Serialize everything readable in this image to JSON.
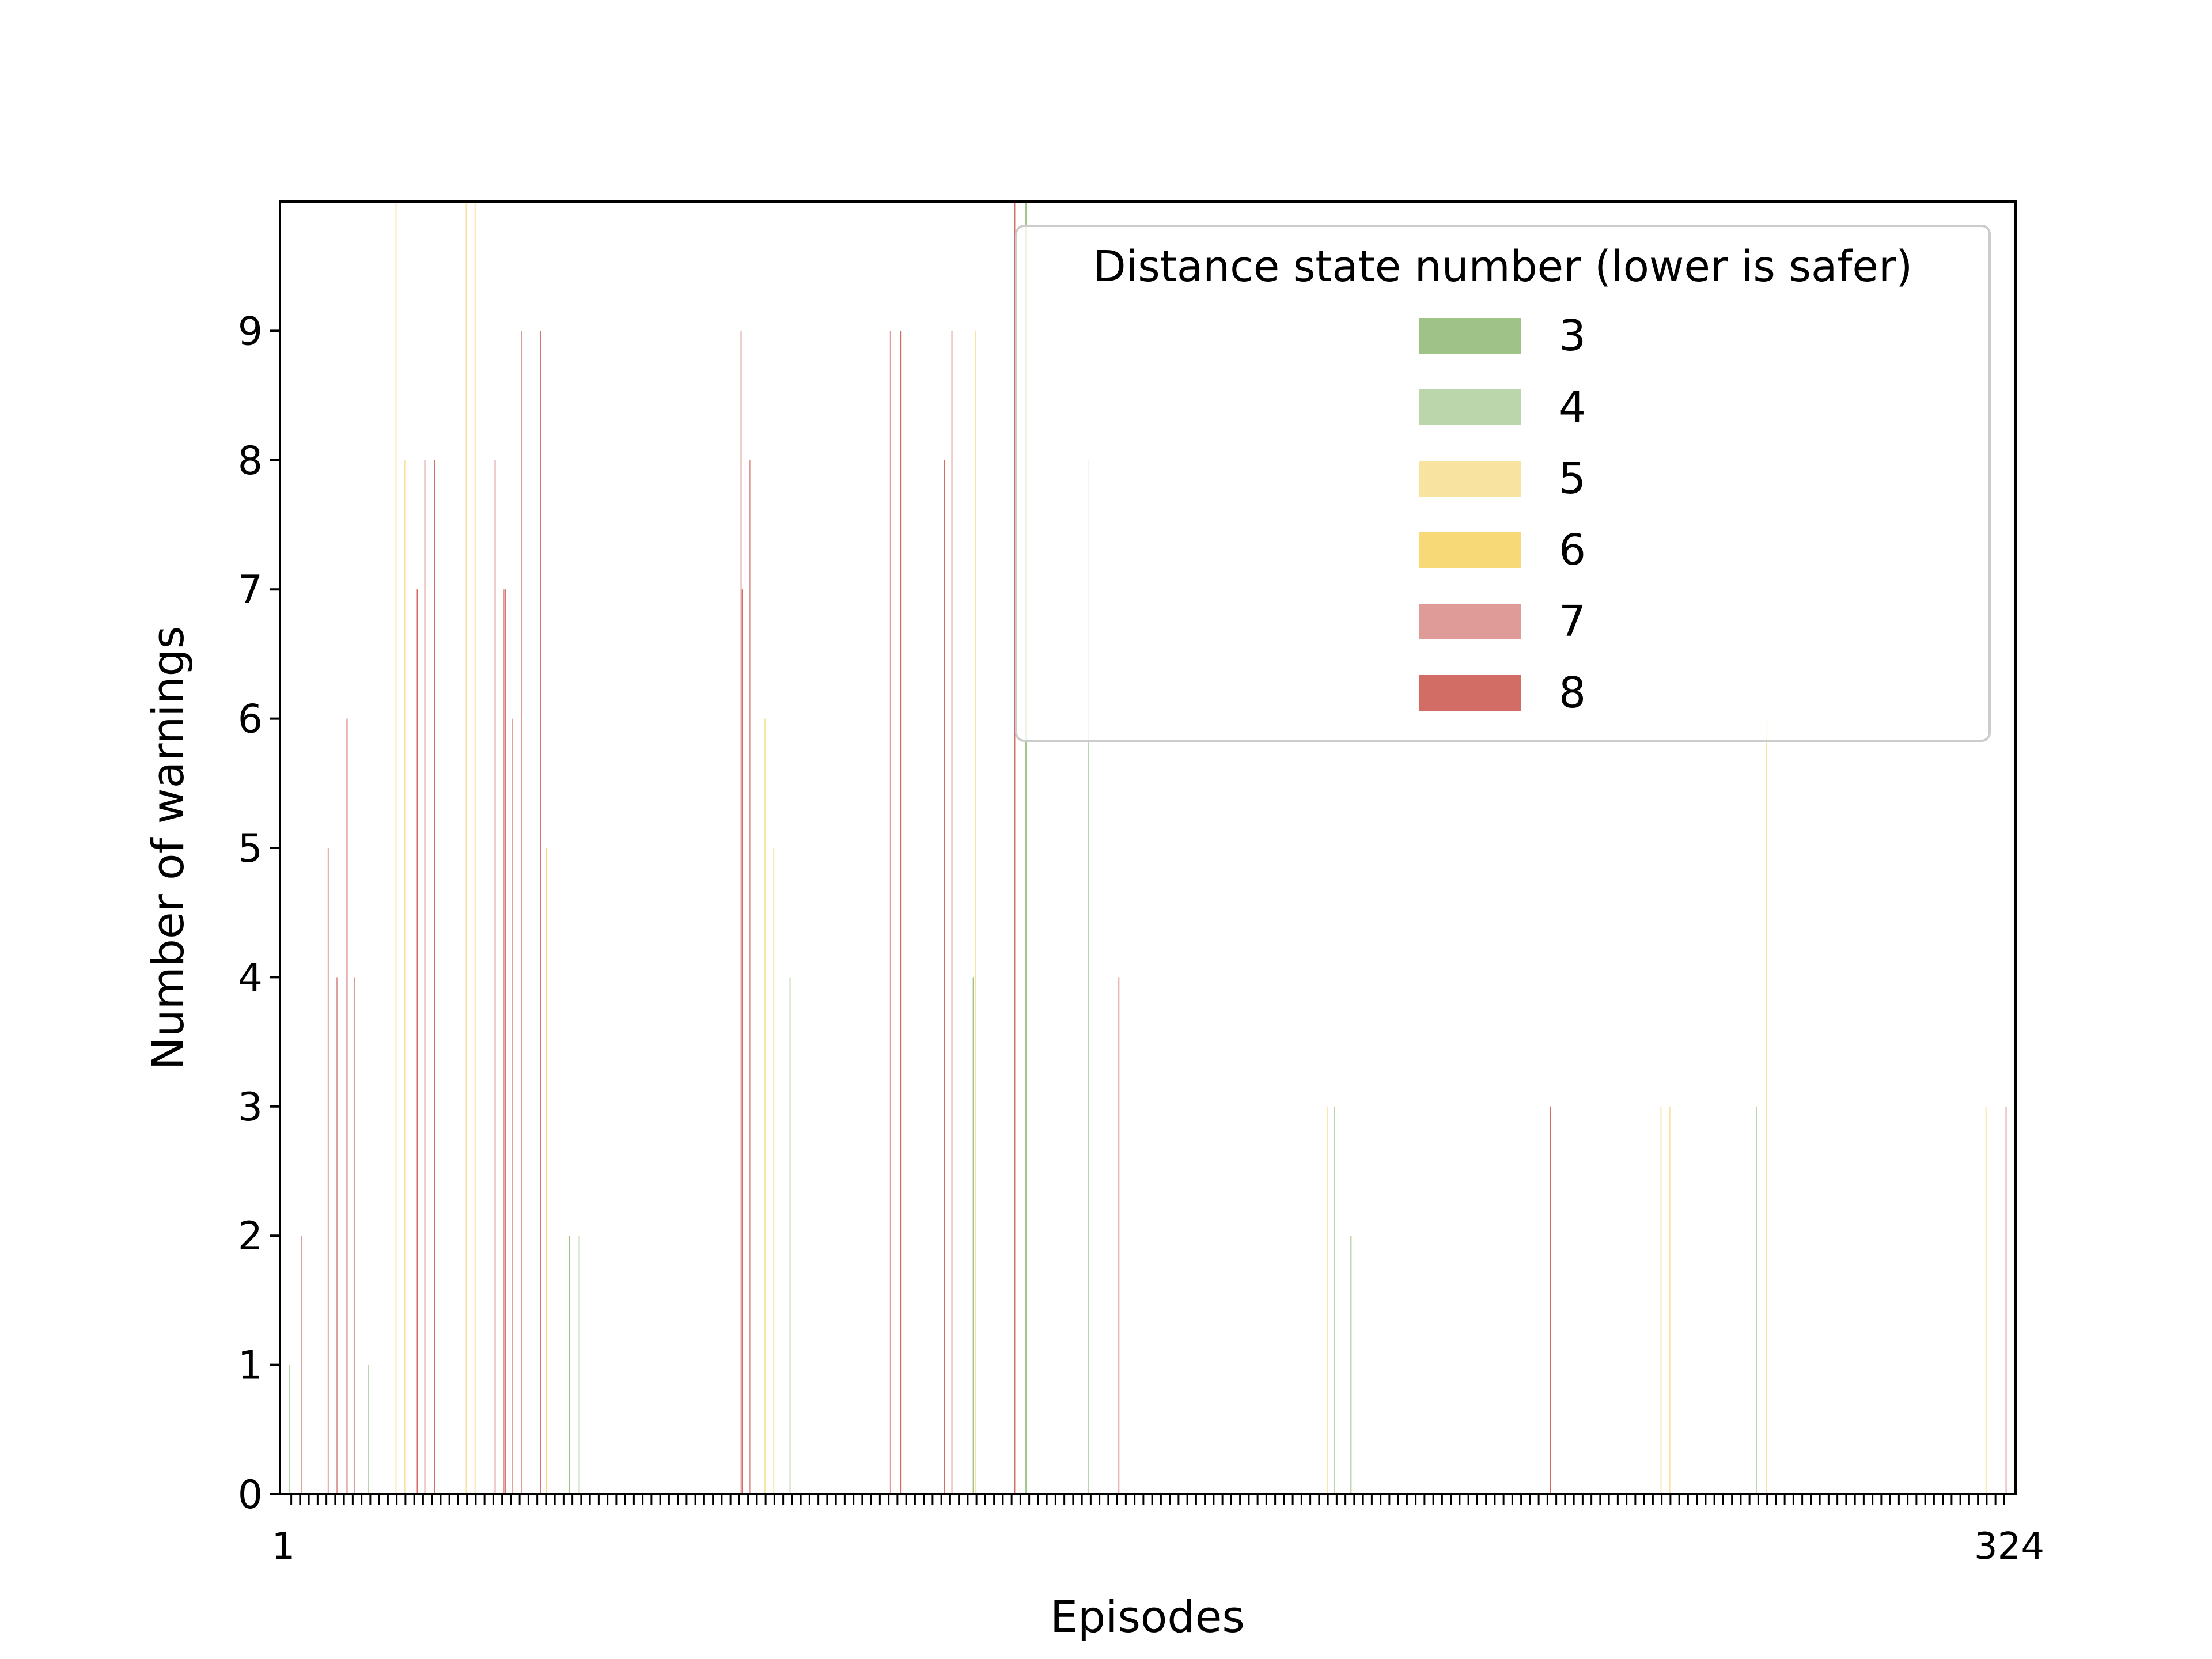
{
  "chart_data": {
    "type": "bar",
    "title": "",
    "xlabel": "Episodes",
    "ylabel": "Number of warnings",
    "ylim": [
      0,
      10
    ],
    "yticks": [
      0,
      1,
      2,
      3,
      4,
      5,
      6,
      7,
      8,
      9
    ],
    "x_first_label": "1",
    "x_last_label": "324",
    "n_episodes": 196,
    "legend": {
      "title": "Distance state number (lower is safer)",
      "placement": "upper right",
      "entries": [
        {
          "label": "3",
          "color": "#9fc288"
        },
        {
          "label": "4",
          "color": "#bad6aa"
        },
        {
          "label": "5",
          "color": "#f9e3a0"
        },
        {
          "label": "6",
          "color": "#f7d978"
        },
        {
          "label": "7",
          "color": "#df9b97"
        },
        {
          "label": "8",
          "color": "#d26d66"
        }
      ]
    },
    "series": [
      {
        "name": "3",
        "values": [
          0,
          0,
          0,
          0,
          0,
          0,
          0,
          0,
          0,
          0,
          0,
          0,
          0,
          0,
          0,
          0,
          0,
          0,
          0,
          0,
          0,
          0,
          0,
          0,
          0,
          0,
          0,
          0,
          0,
          0,
          0,
          0,
          2,
          0,
          0,
          0,
          0,
          0,
          0,
          0,
          0,
          0,
          0,
          0,
          0,
          0,
          0,
          0,
          0,
          0,
          0,
          0,
          0,
          0,
          0,
          0,
          0,
          0,
          0,
          0,
          0,
          0,
          0,
          0,
          0,
          0,
          0,
          0,
          0,
          0,
          0,
          0,
          0,
          0,
          0,
          0,
          0,
          0,
          4,
          0,
          0,
          0,
          0,
          0,
          10,
          0,
          0,
          0,
          0,
          0,
          0,
          0,
          0,
          0,
          0,
          0,
          0,
          0,
          0,
          0,
          0,
          0,
          0,
          0,
          0,
          0,
          0,
          0,
          0,
          0,
          0,
          0,
          0,
          0,
          0,
          0,
          0,
          0,
          0,
          0,
          0,
          2,
          0,
          0,
          0,
          0,
          0,
          0,
          0,
          0,
          0,
          0,
          0,
          0,
          0,
          0,
          0,
          0,
          0,
          0,
          0,
          0,
          0,
          0,
          0,
          0,
          0,
          0,
          0,
          0,
          0,
          0,
          0,
          0,
          0,
          0,
          0,
          0,
          0,
          0,
          0,
          0,
          0,
          0,
          0,
          0,
          0,
          0,
          0,
          0,
          0,
          0,
          0,
          0,
          0,
          0,
          0,
          0,
          0,
          0,
          0,
          0,
          0,
          0,
          0,
          0,
          0,
          0,
          0,
          0,
          0,
          0,
          0,
          0,
          0,
          0
        ]
      },
      {
        "name": "4",
        "values": [
          1,
          0,
          0,
          0,
          0,
          0,
          0,
          0,
          0,
          1,
          0,
          0,
          0,
          0,
          0,
          0,
          0,
          0,
          0,
          0,
          0,
          0,
          0,
          0,
          0,
          0,
          0,
          0,
          0,
          0,
          0,
          0,
          0,
          2,
          0,
          0,
          0,
          0,
          0,
          0,
          0,
          0,
          0,
          0,
          0,
          0,
          0,
          0,
          0,
          0,
          0,
          0,
          0,
          0,
          0,
          0,
          0,
          4,
          0,
          0,
          0,
          0,
          0,
          0,
          0,
          0,
          0,
          0,
          0,
          0,
          0,
          0,
          0,
          0,
          0,
          0,
          0,
          0,
          0,
          0,
          0,
          0,
          0,
          0,
          0,
          0,
          0,
          0,
          0,
          0,
          0,
          8,
          0,
          0,
          0,
          0,
          0,
          0,
          0,
          0,
          0,
          0,
          0,
          0,
          0,
          0,
          0,
          0,
          0,
          0,
          0,
          0,
          0,
          0,
          0,
          0,
          0,
          0,
          0,
          3,
          0,
          0,
          0,
          0,
          0,
          0,
          0,
          0,
          0,
          0,
          0,
          0,
          0,
          0,
          0,
          0,
          0,
          0,
          0,
          0,
          0,
          0,
          0,
          0,
          0,
          0,
          0,
          0,
          0,
          0,
          0,
          0,
          0,
          0,
          0,
          0,
          0,
          0,
          0,
          0,
          0,
          0,
          0,
          0,
          0,
          0,
          0,
          3,
          0,
          0,
          0,
          0,
          0,
          0,
          0,
          0,
          0,
          0,
          0,
          0,
          0,
          0,
          0,
          0,
          0,
          0,
          0,
          0,
          0,
          0,
          0,
          0,
          0,
          0,
          0,
          0
        ]
      },
      {
        "name": "5",
        "values": [
          0,
          0,
          0,
          0,
          0,
          0,
          0,
          0,
          0,
          0,
          0,
          0,
          10,
          8,
          0,
          0,
          0,
          0,
          0,
          0,
          10,
          10,
          0,
          0,
          0,
          0,
          0,
          0,
          0,
          0,
          0,
          0,
          0,
          0,
          0,
          0,
          0,
          0,
          0,
          0,
          0,
          0,
          0,
          0,
          0,
          0,
          0,
          0,
          0,
          0,
          0,
          0,
          0,
          0,
          6,
          5,
          0,
          0,
          0,
          0,
          0,
          0,
          0,
          0,
          0,
          0,
          0,
          0,
          0,
          0,
          0,
          0,
          0,
          0,
          0,
          0,
          0,
          0,
          9,
          0,
          0,
          0,
          0,
          0,
          0,
          0,
          0,
          0,
          0,
          0,
          0,
          0,
          0,
          0,
          0,
          0,
          0,
          0,
          0,
          0,
          0,
          0,
          0,
          0,
          0,
          0,
          0,
          0,
          0,
          0,
          0,
          0,
          0,
          0,
          0,
          0,
          0,
          0,
          3,
          0,
          0,
          0,
          0,
          0,
          0,
          0,
          0,
          0,
          0,
          0,
          0,
          0,
          0,
          0,
          0,
          0,
          0,
          0,
          0,
          0,
          0,
          0,
          0,
          0,
          0,
          0,
          0,
          0,
          0,
          0,
          0,
          0,
          0,
          0,
          0,
          0,
          3,
          3,
          0,
          0,
          0,
          0,
          0,
          0,
          0,
          0,
          0,
          0,
          6,
          0,
          0,
          0,
          0,
          0,
          0,
          0,
          0,
          0,
          0,
          0,
          0,
          0,
          0,
          0,
          0,
          0,
          0,
          0,
          0,
          0,
          0,
          0,
          0,
          3,
          0
        ]
      },
      {
        "name": "6",
        "values": [
          0,
          0,
          0,
          0,
          0,
          0,
          0,
          0,
          0,
          0,
          0,
          0,
          0,
          0,
          0,
          0,
          0,
          0,
          0,
          0,
          0,
          0,
          0,
          0,
          0,
          0,
          0,
          0,
          0,
          5,
          0,
          0,
          0,
          0,
          0,
          0,
          0,
          0,
          0,
          0,
          0,
          0,
          0,
          0,
          0,
          0,
          0,
          0,
          0,
          0,
          0,
          0,
          0,
          0,
          0,
          0,
          0,
          0,
          0,
          0,
          0,
          0,
          0,
          0,
          0,
          0,
          0,
          0,
          0,
          0,
          0,
          0,
          0,
          0,
          0,
          0,
          0,
          0,
          0,
          0,
          0,
          0,
          0,
          0,
          0,
          0,
          0,
          0,
          0,
          0,
          0,
          0,
          0,
          0,
          0,
          0,
          0,
          0,
          0,
          0,
          0,
          0,
          0,
          0,
          0,
          0,
          0,
          0,
          0,
          0,
          0,
          0,
          0,
          0,
          0,
          0,
          0,
          0,
          0,
          0,
          0,
          0,
          0,
          0,
          0,
          0,
          0,
          0,
          0,
          0,
          0,
          0,
          0,
          0,
          0,
          0,
          0,
          0,
          0,
          0,
          0,
          0,
          0,
          0,
          0,
          0,
          0,
          0,
          0,
          0,
          0,
          0,
          0,
          0,
          0,
          0,
          0,
          0,
          0,
          0,
          0,
          0,
          0,
          0,
          0,
          0,
          0,
          0,
          0,
          0,
          0,
          0,
          0,
          0,
          0,
          0,
          0,
          0,
          0,
          0,
          0,
          0,
          0,
          0,
          0,
          0,
          0,
          0,
          0,
          0,
          0,
          0,
          0,
          0,
          0,
          0
        ]
      },
      {
        "name": "7",
        "values": [
          0,
          2,
          0,
          0,
          5,
          4,
          0,
          4,
          0,
          0,
          0,
          0,
          0,
          0,
          0,
          8,
          0,
          0,
          0,
          0,
          0,
          0,
          0,
          8,
          7,
          6,
          9,
          0,
          0,
          0,
          0,
          0,
          0,
          0,
          0,
          0,
          0,
          0,
          0,
          0,
          0,
          0,
          0,
          0,
          0,
          0,
          0,
          0,
          0,
          0,
          0,
          9,
          8,
          0,
          0,
          0,
          0,
          0,
          0,
          0,
          0,
          0,
          0,
          0,
          0,
          0,
          0,
          0,
          9,
          0,
          0,
          0,
          0,
          0,
          0,
          9,
          0,
          0,
          0,
          0,
          0,
          0,
          0,
          0,
          0,
          0,
          0,
          0,
          0,
          0,
          0,
          0,
          0,
          0,
          4,
          0,
          0,
          0,
          0,
          0,
          0,
          0,
          0,
          0,
          0,
          0,
          0,
          0,
          0,
          0,
          0,
          0,
          0,
          0,
          0,
          0,
          0,
          0,
          0,
          0,
          0,
          0,
          0,
          0,
          0,
          0,
          0,
          0,
          0,
          0,
          0,
          0,
          0,
          0,
          0,
          0,
          0,
          0,
          0,
          0,
          0,
          0,
          0,
          0,
          0,
          0,
          0,
          0,
          0,
          0,
          0,
          0,
          0,
          0,
          0,
          0,
          0,
          0,
          0,
          0,
          0,
          0,
          0,
          0,
          0,
          0,
          0,
          0,
          0,
          0,
          0,
          0,
          0,
          0,
          0,
          0,
          0,
          0,
          0,
          0,
          0,
          0,
          0,
          0,
          0,
          0,
          0,
          0,
          0,
          0,
          0,
          0,
          0,
          0,
          0,
          3
        ]
      },
      {
        "name": "8",
        "values": [
          0,
          0,
          0,
          0,
          0,
          0,
          6,
          0,
          0,
          0,
          0,
          0,
          0,
          0,
          7,
          0,
          8,
          0,
          0,
          0,
          0,
          0,
          0,
          0,
          7,
          0,
          0,
          0,
          9,
          0,
          0,
          0,
          0,
          0,
          0,
          0,
          0,
          0,
          0,
          0,
          0,
          0,
          0,
          0,
          0,
          0,
          0,
          0,
          0,
          0,
          0,
          7,
          0,
          0,
          0,
          0,
          0,
          0,
          0,
          0,
          0,
          0,
          0,
          0,
          0,
          0,
          0,
          0,
          0,
          9,
          0,
          0,
          0,
          0,
          8,
          0,
          0,
          0,
          0,
          0,
          0,
          0,
          10,
          0,
          0,
          0,
          0,
          0,
          0,
          0,
          0,
          0,
          0,
          0,
          0,
          0,
          0,
          0,
          0,
          0,
          0,
          0,
          0,
          0,
          0,
          0,
          0,
          0,
          0,
          0,
          0,
          0,
          0,
          0,
          0,
          0,
          0,
          0,
          0,
          0,
          0,
          0,
          0,
          0,
          0,
          0,
          0,
          0,
          0,
          0,
          0,
          0,
          0,
          0,
          0,
          0,
          0,
          0,
          0,
          0,
          0,
          0,
          0,
          3,
          0,
          0,
          0,
          0,
          0,
          0,
          0,
          0,
          0,
          0,
          0,
          0,
          0,
          0,
          0,
          0,
          0,
          0,
          0,
          0,
          0,
          0,
          0,
          0,
          0,
          0,
          0,
          0,
          0,
          0,
          0,
          0,
          0,
          0,
          0,
          0,
          0,
          0,
          0,
          0,
          0,
          0,
          0,
          0,
          0,
          0,
          0,
          0,
          0,
          0,
          0,
          0
        ]
      }
    ]
  }
}
